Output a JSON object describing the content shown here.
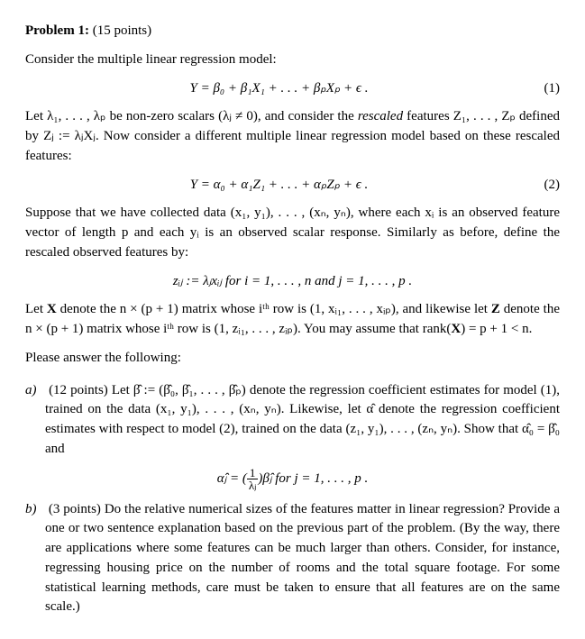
{
  "title": "Problem 1:",
  "points_label": "(15 points)",
  "intro": "Consider the multiple linear regression model:",
  "eq1": "Y = β₀ + β₁X₁ + . . . + βₚXₚ + ϵ .",
  "eq1_num": "(1)",
  "para_rescale_a": "Let λ₁, . . . , λₚ be non-zero scalars (λⱼ ≠ 0), and consider the ",
  "rescaled_word": "rescaled",
  "para_rescale_b": " features Z₁, . . . , Zₚ defined by Zⱼ := λⱼXⱼ. Now consider a different multiple linear regression model based on these rescaled features:",
  "eq2": "Y = α₀ + α₁Z₁ + . . . + αₚZₚ + ϵ .",
  "eq2_num": "(2)",
  "para_data": "Suppose that we have collected data (x₁, y₁), . . . , (xₙ, yₙ), where each xᵢ is an observed feature vector of length p and each yᵢ is an observed scalar response. Similarly as before, define the rescaled observed features by:",
  "eq_zij": "zᵢⱼ := λⱼxᵢⱼ  for i = 1, . . . , n and j = 1, . . . , p .",
  "para_matrices_a": "Let ",
  "bold_X": "X",
  "para_matrices_b": " denote the n × (p + 1) matrix whose iᵗʰ row is (1, xᵢ₁, . . . , xᵢₚ), and likewise let ",
  "bold_Z": "Z",
  "para_matrices_c": " denote the n × (p + 1) matrix whose iᵗʰ row is (1, zᵢ₁, . . . , zᵢₚ). You may assume that rank(",
  "bold_X2": "X",
  "para_matrices_d": ") = p + 1 < n.",
  "please": "Please answer the following:",
  "part_a_label": "a)",
  "part_a_points": "(12 points) ",
  "part_a_text": "Let β̂ := (β̂₀, β̂₁, . . . , β̂ₚ) denote the regression coefficient estimates for model (1), trained on the data (x₁, y₁), . . . , (xₙ, yₙ). Likewise, let α̂ denote the regression coefficient estimates with respect to model (2), trained on the data (z₁, y₁), . . . , (zₙ, yₙ). Show that α̂₀ = β̂₀ and",
  "eq_alpha_pre": "α̂ⱼ = (",
  "frac_num": "1",
  "frac_den": "λⱼ",
  "eq_alpha_post": ")β̂ⱼ  for j = 1, . . . , p .",
  "part_b_label": "b)",
  "part_b_points": "(3 points) ",
  "part_b_text": "Do the relative numerical sizes of the features matter in linear regression? Provide a one or two sentence explanation based on the previous part of the problem. (By the way, there are applications where some features can be much larger than others. Consider, for instance, regressing housing price on the number of rooms and the total square footage. For some statistical learning methods, care must be taken to ensure that all features are on the same scale.)"
}
